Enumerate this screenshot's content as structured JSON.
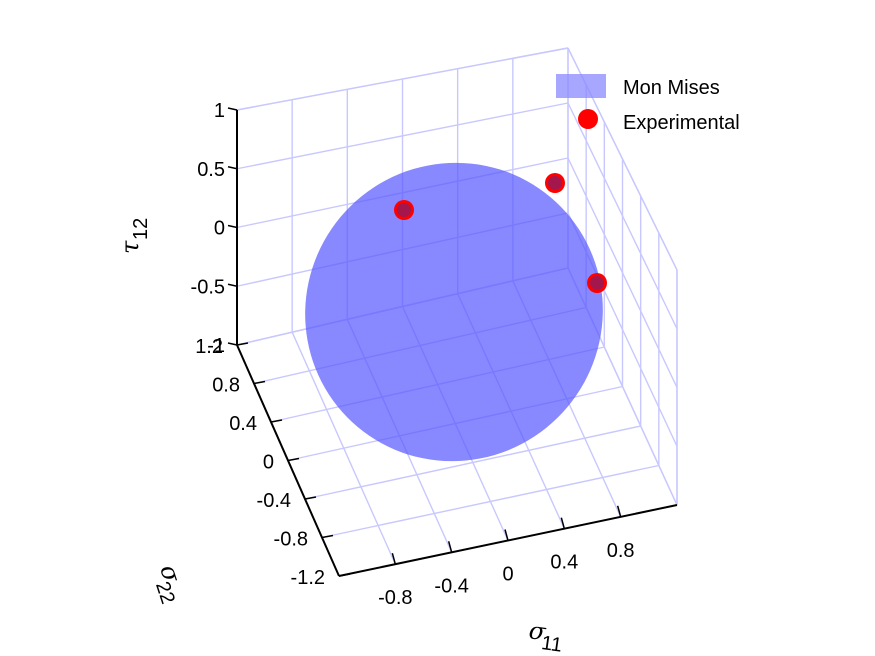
{
  "chart_data": {
    "type": "scatter",
    "view": "3d",
    "legend": {
      "placement": "top-right",
      "entries": [
        {
          "label": "Mon Mises",
          "marker": "patch",
          "color": "#8a8aff"
        },
        {
          "label": "Experimental",
          "marker": "circle",
          "color": "#ff0000"
        }
      ]
    },
    "axes": {
      "x": {
        "symbol": "σ",
        "subscript": "11",
        "ticks": [
          "-0.8",
          "-0.4",
          "0",
          "0.4",
          "0.8"
        ],
        "range": [
          -1.2,
          1.2
        ]
      },
      "y": {
        "symbol": "σ",
        "subscript": "22",
        "ticks": [
          "1.2",
          "0.8",
          "0.4",
          "0",
          "-0.4",
          "-0.8",
          "-1.2"
        ],
        "range": [
          -1.2,
          1.2
        ]
      },
      "z": {
        "symbol": "τ",
        "subscript": "12",
        "ticks": [
          "1",
          "0.5",
          "0",
          "-0.5",
          "-1"
        ],
        "range": [
          -1,
          1
        ]
      }
    },
    "grid": true,
    "surface": {
      "name": "Mon Mises",
      "shape": "ellipsoid",
      "color": "#5050ff",
      "opacity": 0.7
    },
    "series": [
      {
        "name": "Experimental",
        "color": "#ff0000",
        "points": [
          {
            "x": -0.75,
            "y": 0.62,
            "z": 0.05
          },
          {
            "x": 0.35,
            "y": 0.95,
            "z": 0.4
          },
          {
            "x": 0.92,
            "y": 0.05,
            "z": 0.05
          }
        ]
      }
    ]
  }
}
